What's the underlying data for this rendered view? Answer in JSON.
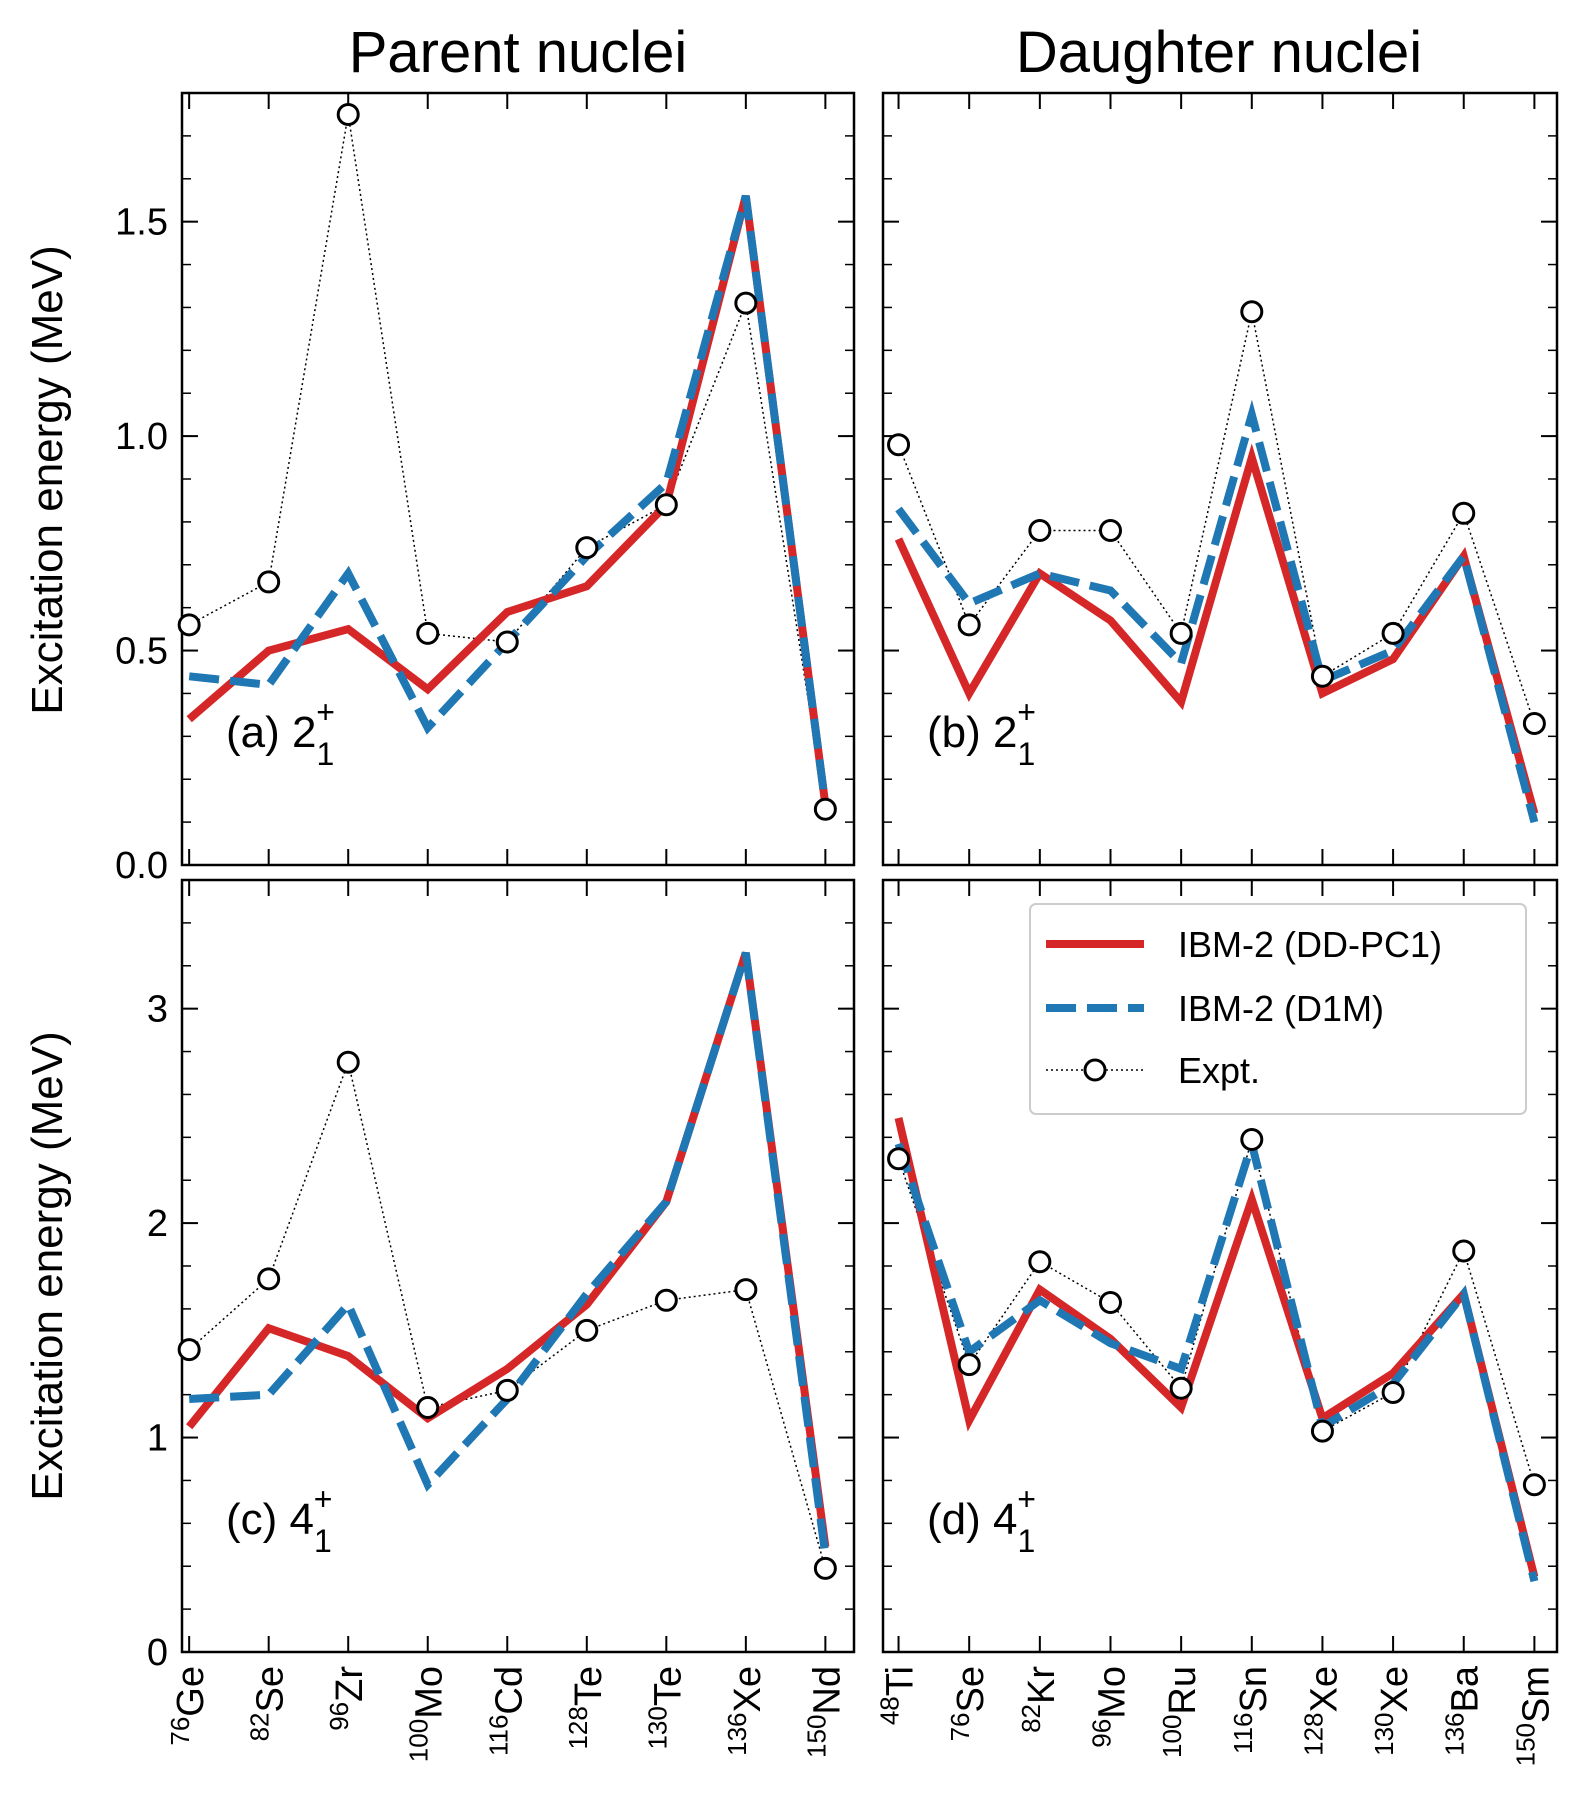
{
  "column_titles": [
    "Parent nuclei",
    "Daughter nuclei"
  ],
  "ylabel": "Excitation energy (MeV)",
  "legend": [
    "IBM-2 (DD-PC1)",
    "IBM-2 (D1M)",
    "Expt."
  ],
  "colors": {
    "ddpc1": "#d62728",
    "d1m": "#1f77b4",
    "expt": "#000000"
  },
  "chart_data": [
    {
      "type": "line",
      "panel": "(a)",
      "label": {
        "prefix": "(a) ",
        "base": "2",
        "sub": "1",
        "sup": "+"
      },
      "categories": [
        {
          "mass": "76",
          "el": "Ge"
        },
        {
          "mass": "82",
          "el": "Se"
        },
        {
          "mass": "96",
          "el": "Zr"
        },
        {
          "mass": "100",
          "el": "Mo"
        },
        {
          "mass": "116",
          "el": "Cd"
        },
        {
          "mass": "128",
          "el": "Te"
        },
        {
          "mass": "130",
          "el": "Te"
        },
        {
          "mass": "136",
          "el": "Xe"
        },
        {
          "mass": "150",
          "el": "Nd"
        }
      ],
      "ylim": [
        0,
        1.8
      ],
      "yticks": [
        0.0,
        0.5,
        1.0,
        1.5
      ],
      "yticklabels": [
        "0.0",
        "0.5",
        "1.0",
        "1.5"
      ],
      "yminor": 0.1,
      "series": [
        {
          "name": "IBM-2 (DD-PC1)",
          "values": [
            0.34,
            0.5,
            0.55,
            0.41,
            0.59,
            0.65,
            0.84,
            1.56,
            0.14
          ]
        },
        {
          "name": "IBM-2 (D1M)",
          "values": [
            0.44,
            0.42,
            0.68,
            0.32,
            0.52,
            0.72,
            0.89,
            1.56,
            0.14
          ]
        },
        {
          "name": "Expt.",
          "values": [
            0.56,
            0.66,
            1.75,
            0.54,
            0.52,
            0.74,
            0.84,
            1.31,
            0.13
          ]
        }
      ]
    },
    {
      "type": "line",
      "panel": "(b)",
      "label": {
        "prefix": "(b) ",
        "base": "2",
        "sub": "1",
        "sup": "+"
      },
      "categories": [
        {
          "mass": "48",
          "el": "Ti"
        },
        {
          "mass": "76",
          "el": "Se"
        },
        {
          "mass": "82",
          "el": "Kr"
        },
        {
          "mass": "96",
          "el": "Mo"
        },
        {
          "mass": "100",
          "el": "Ru"
        },
        {
          "mass": "116",
          "el": "Sn"
        },
        {
          "mass": "128",
          "el": "Xe"
        },
        {
          "mass": "130",
          "el": "Xe"
        },
        {
          "mass": "136",
          "el": "Ba"
        },
        {
          "mass": "150",
          "el": "Sm"
        }
      ],
      "ylim": [
        0,
        1.8
      ],
      "yticks": [
        0.0,
        0.5,
        1.0,
        1.5
      ],
      "yticklabels": [],
      "yminor": 0.1,
      "series": [
        {
          "name": "IBM-2 (DD-PC1)",
          "values": [
            0.76,
            0.4,
            0.68,
            0.57,
            0.38,
            0.95,
            0.4,
            0.48,
            0.72,
            0.12
          ]
        },
        {
          "name": "IBM-2 (D1M)",
          "values": [
            0.83,
            0.61,
            0.68,
            0.64,
            0.47,
            1.05,
            0.43,
            0.5,
            0.72,
            0.1
          ]
        },
        {
          "name": "Expt.",
          "values": [
            0.98,
            0.56,
            0.78,
            0.78,
            0.54,
            1.29,
            0.44,
            0.54,
            0.82,
            0.33
          ]
        }
      ]
    },
    {
      "type": "line",
      "panel": "(c)",
      "label": {
        "prefix": "(c) ",
        "base": "4",
        "sub": "1",
        "sup": "+"
      },
      "categories": [
        {
          "mass": "76",
          "el": "Ge"
        },
        {
          "mass": "82",
          "el": "Se"
        },
        {
          "mass": "96",
          "el": "Zr"
        },
        {
          "mass": "100",
          "el": "Mo"
        },
        {
          "mass": "116",
          "el": "Cd"
        },
        {
          "mass": "128",
          "el": "Te"
        },
        {
          "mass": "130",
          "el": "Te"
        },
        {
          "mass": "136",
          "el": "Xe"
        },
        {
          "mass": "150",
          "el": "Nd"
        }
      ],
      "ylim": [
        0,
        3.6
      ],
      "yticks": [
        0,
        1,
        2,
        3
      ],
      "yticklabels": [
        "0",
        "1",
        "2",
        "3"
      ],
      "yminor": 0.2,
      "series": [
        {
          "name": "IBM-2 (DD-PC1)",
          "values": [
            1.05,
            1.51,
            1.38,
            1.09,
            1.32,
            1.62,
            2.1,
            3.26,
            0.49
          ]
        },
        {
          "name": "IBM-2 (D1M)",
          "values": [
            1.18,
            1.2,
            1.62,
            0.78,
            1.18,
            1.67,
            2.1,
            3.26,
            0.45
          ]
        },
        {
          "name": "Expt.",
          "values": [
            1.41,
            1.74,
            2.75,
            1.14,
            1.22,
            1.5,
            1.64,
            1.69,
            0.39
          ]
        }
      ]
    },
    {
      "type": "line",
      "panel": "(d)",
      "label": {
        "prefix": "(d) ",
        "base": "4",
        "sub": "1",
        "sup": "+"
      },
      "categories": [
        {
          "mass": "48",
          "el": "Ti"
        },
        {
          "mass": "76",
          "el": "Se"
        },
        {
          "mass": "82",
          "el": "Kr"
        },
        {
          "mass": "96",
          "el": "Mo"
        },
        {
          "mass": "100",
          "el": "Ru"
        },
        {
          "mass": "116",
          "el": "Sn"
        },
        {
          "mass": "128",
          "el": "Xe"
        },
        {
          "mass": "130",
          "el": "Xe"
        },
        {
          "mass": "136",
          "el": "Ba"
        },
        {
          "mass": "150",
          "el": "Sm"
        }
      ],
      "ylim": [
        0,
        3.6
      ],
      "yticks": [
        0,
        1,
        2,
        3
      ],
      "yticklabels": [],
      "yminor": 0.2,
      "series": [
        {
          "name": "IBM-2 (DD-PC1)",
          "values": [
            2.49,
            1.08,
            1.69,
            1.46,
            1.14,
            2.11,
            1.09,
            1.3,
            1.67,
            0.35
          ]
        },
        {
          "name": "IBM-2 (D1M)",
          "values": [
            2.37,
            1.4,
            1.64,
            1.44,
            1.32,
            2.37,
            1.05,
            1.25,
            1.67,
            0.33
          ]
        },
        {
          "name": "Expt.",
          "values": [
            2.3,
            1.34,
            1.82,
            1.63,
            1.23,
            2.39,
            1.03,
            1.21,
            1.87,
            0.78
          ]
        }
      ]
    }
  ]
}
